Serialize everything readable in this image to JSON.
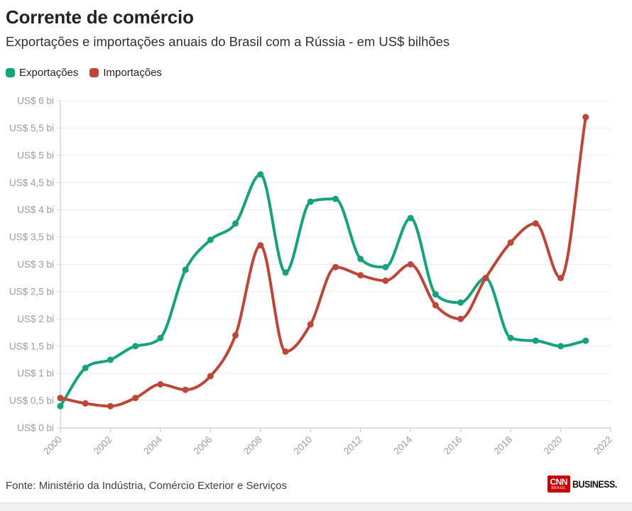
{
  "header": {
    "title": "Corrente de comércio",
    "subtitle": "Exportações e importações anuais do Brasil com a Rússia - em US$ bilhões"
  },
  "legend": {
    "items": [
      {
        "label": "Exportações",
        "color": "#16a27b"
      },
      {
        "label": "Importações",
        "color": "#bc4638"
      }
    ]
  },
  "chart_data": {
    "type": "line",
    "x": [
      2000,
      2001,
      2002,
      2003,
      2004,
      2005,
      2006,
      2007,
      2008,
      2009,
      2010,
      2011,
      2012,
      2013,
      2014,
      2015,
      2016,
      2017,
      2018,
      2019,
      2020,
      2021
    ],
    "series": [
      {
        "name": "Exportações",
        "color": "#16a27b",
        "values": [
          0.4,
          1.1,
          1.25,
          1.5,
          1.65,
          2.9,
          3.45,
          3.75,
          4.65,
          2.85,
          4.15,
          4.2,
          3.1,
          2.95,
          3.85,
          2.45,
          2.3,
          2.75,
          1.65,
          1.6,
          1.5,
          1.6
        ]
      },
      {
        "name": "Importações",
        "color": "#bc4638",
        "values": [
          0.55,
          0.45,
          0.4,
          0.55,
          0.8,
          0.7,
          0.95,
          1.7,
          3.35,
          1.4,
          1.9,
          2.95,
          2.8,
          2.7,
          3.0,
          2.25,
          2.0,
          2.75,
          3.4,
          3.75,
          2.75,
          5.7
        ]
      }
    ],
    "xlim": [
      2000,
      2022
    ],
    "ylim": [
      0,
      6
    ],
    "xticks": [
      "2000",
      "2002",
      "2004",
      "2006",
      "2008",
      "2010",
      "2012",
      "2014",
      "2016",
      "2018",
      "2020",
      "2022"
    ],
    "ytick_values": [
      0,
      0.5,
      1,
      1.5,
      2,
      2.5,
      3,
      3.5,
      4,
      4.5,
      5,
      5.5,
      6
    ],
    "ytick_labels": [
      "US$ 0 bi",
      "US$ 0,5 bi",
      "US$ 1 bi",
      "US$ 1,5 bi",
      "US$ 2 bi",
      "US$ 2,5 bi",
      "US$ 3 bi",
      "US$ 3,5 bi",
      "US$ 4 bi",
      "US$ 4,5 bi",
      "US$ 5 bi",
      "US$ 5,5 bi",
      "US$ 6 bi"
    ],
    "grid": "horizontal",
    "legend_position": "top-left",
    "grid_color": "#ececec",
    "axis_color": "#d6d6d6",
    "tick_label_color": "#9c9c9c"
  },
  "footer": {
    "source": "Fonte: Ministério da Indústria, Comércio Exterior e Serviços",
    "logo": {
      "cnn": "CNN",
      "brasil": "BRASIL",
      "business": "BUSINESS."
    }
  }
}
